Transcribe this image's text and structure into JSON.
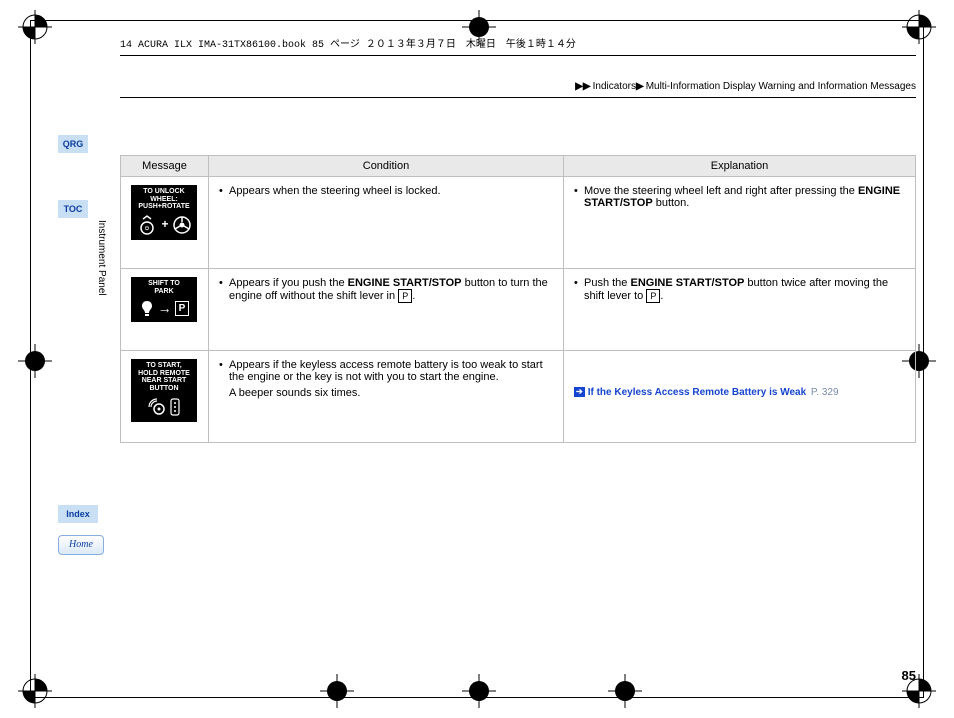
{
  "doc_header": "14 ACURA ILX IMA-31TX86100.book  85 ページ  ２０１３年３月７日　木曜日　午後１時１４分",
  "breadcrumb": {
    "a": "Indicators",
    "b": "Multi-Information Display Warning and Information Messages"
  },
  "sidebar": {
    "qrg": "QRG",
    "toc": "TOC",
    "index": "Index",
    "home": "Home",
    "vertical": "Instrument Panel"
  },
  "table": {
    "headers": {
      "message": "Message",
      "condition": "Condition",
      "explanation": "Explanation"
    }
  },
  "rows": [
    {
      "msg": {
        "lines": [
          "TO UNLOCK",
          "WHEEL:",
          "PUSH+ROTATE"
        ],
        "icon_type": "push_rotate"
      },
      "cond": [
        {
          "parts": [
            {
              "t": "Appears when the steering wheel is locked."
            }
          ]
        }
      ],
      "expl": [
        {
          "parts": [
            {
              "t": "Move the steering wheel left and right after pressing the "
            },
            {
              "t": "ENGINE START/STOP",
              "bold": true
            },
            {
              "t": " button."
            }
          ]
        }
      ]
    },
    {
      "msg": {
        "lines": [
          "SHIFT TO",
          "PARK"
        ],
        "icon_type": "shift_park"
      },
      "cond": [
        {
          "parts": [
            {
              "t": "Appears if you push the "
            },
            {
              "t": "ENGINE START/STOP",
              "bold": true
            },
            {
              "t": " button to turn the engine off without the shift lever in "
            },
            {
              "pbox": "P"
            },
            {
              "t": "."
            }
          ]
        }
      ],
      "expl": [
        {
          "parts": [
            {
              "t": "Push the "
            },
            {
              "t": "ENGINE START/STOP",
              "bold": true
            },
            {
              "t": " button twice after moving the shift lever to "
            },
            {
              "pbox": "P"
            },
            {
              "t": "."
            }
          ]
        }
      ]
    },
    {
      "msg": {
        "lines": [
          "TO START,",
          "HOLD REMOTE",
          "NEAR START",
          "BUTTON"
        ],
        "icon_type": "remote"
      },
      "cond": [
        {
          "parts": [
            {
              "t": "Appears if the keyless access remote battery is too weak to start the engine or the key is not with you to start the engine."
            }
          ]
        },
        {
          "plain": "A beeper sounds six times."
        }
      ],
      "expl_link": {
        "label": "If the Keyless Access Remote Battery is Weak",
        "page": "P. 329"
      }
    }
  ],
  "page_number": "85"
}
